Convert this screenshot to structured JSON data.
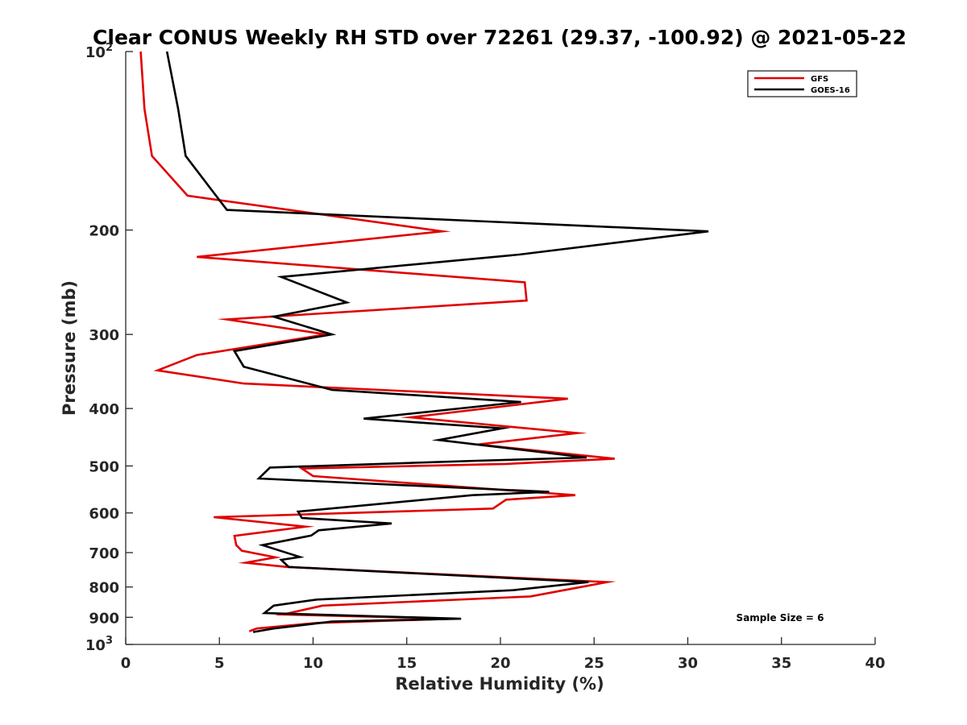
{
  "chart_data": {
    "type": "line",
    "title": "Clear CONUS Weekly RH STD over 72261 (29.37, -100.92) @ 2021-05-22",
    "xlabel": "Relative Humidity (%)",
    "ylabel": "Pressure (mb)",
    "xlim": [
      0,
      40
    ],
    "ylim": [
      100,
      1000
    ],
    "y_scale": "log",
    "y_reversed": true,
    "x_ticks": [
      "0",
      "5",
      "10",
      "15",
      "20",
      "25",
      "30",
      "35",
      "40"
    ],
    "y_ticks": [
      {
        "value": 100,
        "base": "10",
        "exp": "2"
      },
      {
        "value": 200,
        "label": "200"
      },
      {
        "value": 300,
        "label": "300"
      },
      {
        "value": 400,
        "label": "400"
      },
      {
        "value": 500,
        "label": "500"
      },
      {
        "value": 600,
        "label": "600"
      },
      {
        "value": 700,
        "label": "700"
      },
      {
        "value": 800,
        "label": "800"
      },
      {
        "value": 900,
        "label": "900"
      },
      {
        "value": 1000,
        "base": "10",
        "exp": "3"
      }
    ],
    "legend_position": "top-right",
    "grid": false,
    "annotation": "Sample Size = 6",
    "series": [
      {
        "name": "GFS",
        "color": "#e00000",
        "points": [
          [
            0.8,
            100
          ],
          [
            1.0,
            125
          ],
          [
            1.4,
            150
          ],
          [
            3.3,
            175
          ],
          [
            16.9,
            201
          ],
          [
            3.8,
            222
          ],
          [
            21.3,
            245
          ],
          [
            21.4,
            263
          ],
          [
            5.4,
            283
          ],
          [
            10.7,
            300
          ],
          [
            3.8,
            325
          ],
          [
            1.7,
            345
          ],
          [
            6.3,
            363
          ],
          [
            23.6,
            385
          ],
          [
            15.2,
            414
          ],
          [
            24.1,
            440
          ],
          [
            18.8,
            460
          ],
          [
            26.1,
            486
          ],
          [
            20.3,
            496
          ],
          [
            9.4,
            505
          ],
          [
            10.0,
            520
          ],
          [
            24.0,
            560
          ],
          [
            20.3,
            570
          ],
          [
            19.6,
            590
          ],
          [
            4.7,
            610
          ],
          [
            9.6,
            633
          ],
          [
            5.8,
            656
          ],
          [
            5.9,
            680
          ],
          [
            6.2,
            695
          ],
          [
            8.0,
            713
          ],
          [
            6.4,
            728
          ],
          [
            8.6,
            740
          ],
          [
            25.7,
            785
          ],
          [
            24.3,
            800
          ],
          [
            21.6,
            830
          ],
          [
            10.5,
            860
          ],
          [
            8.4,
            890
          ],
          [
            17.5,
            905
          ],
          [
            10.2,
            920
          ],
          [
            7.0,
            940
          ],
          [
            6.6,
            950
          ]
        ]
      },
      {
        "name": "GOES-16",
        "color": "#000000",
        "points": [
          [
            2.2,
            100
          ],
          [
            2.8,
            125
          ],
          [
            3.2,
            150
          ],
          [
            5.4,
            185
          ],
          [
            31.1,
            201
          ],
          [
            21.0,
            220
          ],
          [
            8.3,
            240
          ],
          [
            11.8,
            265
          ],
          [
            7.9,
            280
          ],
          [
            11.0,
            300
          ],
          [
            5.8,
            320
          ],
          [
            6.3,
            340
          ],
          [
            11.0,
            372
          ],
          [
            21.1,
            390
          ],
          [
            12.7,
            416
          ],
          [
            20.1,
            432
          ],
          [
            16.7,
            452
          ],
          [
            24.6,
            484
          ],
          [
            18.7,
            490
          ],
          [
            7.7,
            503
          ],
          [
            7.1,
            525
          ],
          [
            22.6,
            553
          ],
          [
            18.5,
            560
          ],
          [
            9.2,
            597
          ],
          [
            9.4,
            612
          ],
          [
            14.2,
            625
          ],
          [
            10.3,
            642
          ],
          [
            9.9,
            655
          ],
          [
            7.3,
            680
          ],
          [
            9.3,
            712
          ],
          [
            8.3,
            720
          ],
          [
            8.7,
            740
          ],
          [
            24.7,
            785
          ],
          [
            20.7,
            810
          ],
          [
            10.2,
            840
          ],
          [
            7.9,
            860
          ],
          [
            7.4,
            885
          ],
          [
            17.9,
            905
          ],
          [
            11.0,
            915
          ],
          [
            7.9,
            940
          ],
          [
            6.8,
            953
          ]
        ]
      }
    ]
  }
}
